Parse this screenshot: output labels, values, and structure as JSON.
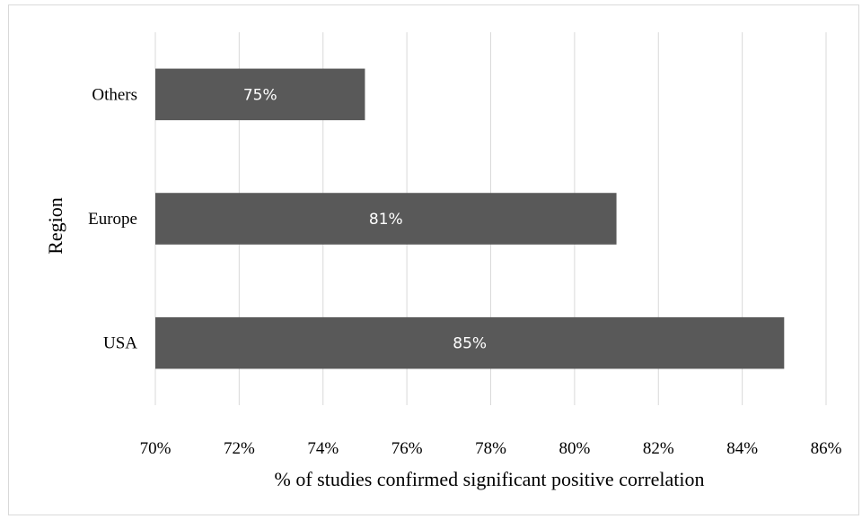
{
  "chart_data": {
    "type": "bar",
    "orientation": "horizontal",
    "categories": [
      "USA",
      "Europe",
      "Others"
    ],
    "values": [
      85,
      81,
      75
    ],
    "data_labels": [
      "85%",
      "81%",
      "75%"
    ],
    "xlabel": "% of studies confirmed significant positive correlation",
    "ylabel": "Region",
    "xlim": [
      70,
      86
    ],
    "x_ticks": [
      70,
      72,
      74,
      76,
      78,
      80,
      82,
      84,
      86
    ],
    "x_tick_labels": [
      "70%",
      "72%",
      "74%",
      "76%",
      "78%",
      "80%",
      "82%",
      "84%",
      "86%"
    ],
    "grid": "vertical",
    "legend": "none",
    "bar_color": "#595959",
    "grid_color": "#d9d9d9"
  }
}
